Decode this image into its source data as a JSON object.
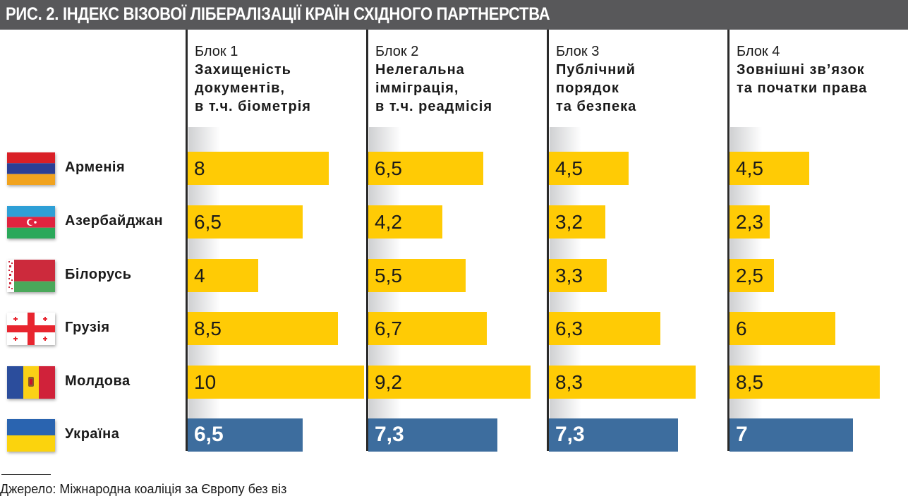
{
  "title": "РИС. 2. ІНДЕКС ВІЗОВОЇ ЛІБЕРАЛІЗАЦІЇ КРАЇН СХІДНОГО ПАРТНЕРСТВА",
  "colors": {
    "title_bg": "#58585a",
    "bar_default": "#ffcb05",
    "bar_highlight": "#3d6d9e"
  },
  "source": "Джерело: Міжнародна коаліція за Європу без віз",
  "chart_data": {
    "type": "bar",
    "orientation": "horizontal",
    "title": "РИС. 2. ІНДЕКС ВІЗОВОЇ ЛІБЕРАЛІЗАЦІЇ КРАЇН СХІДНОГО ПАРТНЕРСТВА",
    "xlim": [
      0,
      10
    ],
    "grid": false,
    "legend": "none",
    "highlight_category": "Україна",
    "categories": [
      "Арменія",
      "Азербайджан",
      "Білорусь",
      "Грузія",
      "Молдова",
      "Україна"
    ],
    "category_icons": [
      "flag-armenia-icon",
      "flag-azerbaijan-icon",
      "flag-belarus-icon",
      "flag-georgia-icon",
      "flag-moldova-icon",
      "flag-ukraine-icon"
    ],
    "series": [
      {
        "block": "Блок 1",
        "name": "Захищеність документів, в т.ч. біометрія",
        "name_lines": [
          "Захищеність",
          "документів,",
          "в т.ч. біометрія"
        ],
        "values": [
          8,
          6.5,
          4,
          8.5,
          10,
          6.5
        ],
        "labels": [
          "8",
          "6,5",
          "4",
          "8,5",
          "10",
          "6,5"
        ]
      },
      {
        "block": "Блок 2",
        "name": "Нелегальна імміграція, в т.ч. реадмісія",
        "name_lines": [
          "Нелегальна",
          "імміграція,",
          "в т.ч. реадмісія"
        ],
        "values": [
          6.5,
          4.2,
          5.5,
          6.7,
          9.2,
          7.3
        ],
        "labels": [
          "6,5",
          "4,2",
          "5,5",
          "6,7",
          "9,2",
          "7,3"
        ]
      },
      {
        "block": "Блок 3",
        "name": "Публічний порядок та безпека",
        "name_lines": [
          "Публічний",
          "порядок",
          "та безпека"
        ],
        "values": [
          4.5,
          3.2,
          3.3,
          6.3,
          8.3,
          7.3
        ],
        "labels": [
          "4,5",
          "3,2",
          "3,3",
          "6,3",
          "8,3",
          "7,3"
        ]
      },
      {
        "block": "Блок 4",
        "name": "Зовнішні зв’язок та початки права",
        "name_lines": [
          "Зовнішні зв’язок",
          "та початки права"
        ],
        "values": [
          4.5,
          2.3,
          2.5,
          6,
          8.5,
          7
        ],
        "labels": [
          "4,5",
          "2,3",
          "2,5",
          "6",
          "8,5",
          "7"
        ]
      }
    ]
  }
}
